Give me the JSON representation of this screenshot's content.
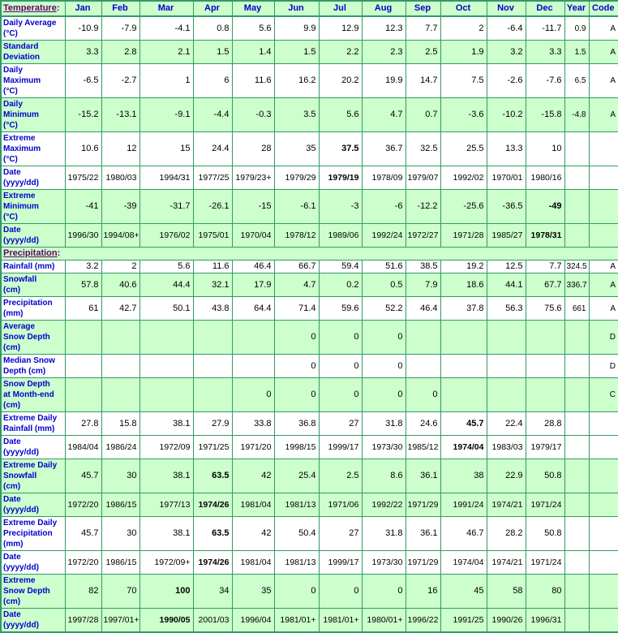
{
  "colors": {
    "row_green": "#CCFFCC",
    "row_white": "#FFFFFF",
    "border_green": "#339966",
    "label_blue": "#0000CC",
    "section_purple": "#660066",
    "value_black": "#000000"
  },
  "header": {
    "section_label": "Temperature",
    "section_suffix": ":",
    "columns": [
      "Jan",
      "Feb",
      "Mar",
      "Apr",
      "May",
      "Jun",
      "Jul",
      "Aug",
      "Sep",
      "Oct",
      "Nov",
      "Dec",
      "Year",
      "Code"
    ]
  },
  "rows": [
    {
      "type": "data",
      "id": "daily-average",
      "label": "Daily Average\n(°C)",
      "bg": "white",
      "date": false,
      "group_start": false,
      "bold": null,
      "values": [
        "-10.9",
        "-7.9",
        "-4.1",
        "0.8",
        "5.6",
        "9.9",
        "12.9",
        "12.3",
        "7.7",
        "2",
        "-6.4",
        "-11.7"
      ],
      "year": "0.9",
      "code": "A"
    },
    {
      "type": "data",
      "id": "standard-deviation",
      "label": "Standard\nDeviation",
      "bg": "green",
      "date": false,
      "group_start": false,
      "bold": null,
      "values": [
        "3.3",
        "2.8",
        "2.1",
        "1.5",
        "1.4",
        "1.5",
        "2.2",
        "2.3",
        "2.5",
        "1.9",
        "3.2",
        "3.3"
      ],
      "year": "1.5",
      "code": "A"
    },
    {
      "type": "data",
      "id": "daily-maximum",
      "label": "Daily\nMaximum\n(°C)",
      "bg": "white",
      "date": false,
      "group_start": false,
      "bold": null,
      "values": [
        "-6.5",
        "-2.7",
        "1",
        "6",
        "11.6",
        "16.2",
        "20.2",
        "19.9",
        "14.7",
        "7.5",
        "-2.6",
        "-7.6"
      ],
      "year": "6.5",
      "code": "A"
    },
    {
      "type": "data",
      "id": "daily-minimum",
      "label": "Daily\nMinimum\n(°C)",
      "bg": "green",
      "date": false,
      "group_start": false,
      "bold": null,
      "values": [
        "-15.2",
        "-13.1",
        "-9.1",
        "-4.4",
        "-0.3",
        "3.5",
        "5.6",
        "4.7",
        "0.7",
        "-3.6",
        "-10.2",
        "-15.8"
      ],
      "year": "-4.8",
      "code": "A"
    },
    {
      "type": "data",
      "id": "extreme-maximum",
      "label": "Extreme\nMaximum\n(°C)",
      "bg": "white",
      "date": false,
      "group_start": true,
      "bold": 6,
      "values": [
        "10.6",
        "12",
        "15",
        "24.4",
        "28",
        "35",
        "37.5",
        "36.7",
        "32.5",
        "25.5",
        "13.3",
        "10"
      ],
      "year": "",
      "code": ""
    },
    {
      "type": "data",
      "id": "date-extreme-maximum",
      "label": "Date\n(yyyy/dd)",
      "bg": "white",
      "date": true,
      "group_start": false,
      "bold": 6,
      "values": [
        "1975/22",
        "1980/03",
        "1994/31",
        "1977/25",
        "1979/23+",
        "1979/29",
        "1979/19",
        "1978/09",
        "1979/07",
        "1992/02",
        "1970/01",
        "1980/16"
      ],
      "year": "",
      "code": ""
    },
    {
      "type": "data",
      "id": "extreme-minimum",
      "label": "Extreme\nMinimum\n(°C)",
      "bg": "green",
      "date": false,
      "group_start": true,
      "bold": 11,
      "values": [
        "-41",
        "-39",
        "-31.7",
        "-26.1",
        "-15",
        "-6.1",
        "-3",
        "-6",
        "-12.2",
        "-25.6",
        "-36.5",
        "-49"
      ],
      "year": "",
      "code": ""
    },
    {
      "type": "data",
      "id": "date-extreme-minimum",
      "label": "Date\n(yyyy/dd)",
      "bg": "green",
      "date": true,
      "group_start": false,
      "bold": 11,
      "values": [
        "1996/30",
        "1994/08+",
        "1976/02",
        "1975/01",
        "1970/04",
        "1978/12",
        "1989/06",
        "1992/24",
        "1972/27",
        "1971/28",
        "1985/27",
        "1978/31"
      ],
      "year": "",
      "code": ""
    },
    {
      "type": "section",
      "id": "precipitation",
      "label": "Precipitation",
      "suffix": ":",
      "bg": "green"
    },
    {
      "type": "data",
      "id": "rainfall",
      "label": "Rainfall (mm)",
      "bg": "white",
      "date": false,
      "group_start": true,
      "bold": null,
      "values": [
        "3.2",
        "2",
        "5.6",
        "11.6",
        "46.4",
        "66.7",
        "59.4",
        "51.6",
        "38.5",
        "19.2",
        "12.5",
        "7.7"
      ],
      "year": "324.5",
      "code": "A"
    },
    {
      "type": "data",
      "id": "snowfall",
      "label": "Snowfall\n(cm)",
      "bg": "green",
      "date": false,
      "group_start": false,
      "bold": null,
      "values": [
        "57.8",
        "40.6",
        "44.4",
        "32.1",
        "17.9",
        "4.7",
        "0.2",
        "0.5",
        "7.9",
        "18.6",
        "44.1",
        "67.7"
      ],
      "year": "336.7",
      "code": "A"
    },
    {
      "type": "data",
      "id": "precipitation-mm",
      "label": "Precipitation\n(mm)",
      "bg": "white",
      "date": false,
      "group_start": false,
      "bold": null,
      "values": [
        "61",
        "42.7",
        "50.1",
        "43.8",
        "64.4",
        "71.4",
        "59.6",
        "52.2",
        "46.4",
        "37.8",
        "56.3",
        "75.6"
      ],
      "year": "661",
      "code": "A"
    },
    {
      "type": "data",
      "id": "average-snow-depth",
      "label": "Average\nSnow Depth\n(cm)",
      "bg": "green",
      "date": false,
      "group_start": false,
      "bold": null,
      "values": [
        "",
        "",
        "",
        "",
        "",
        "0",
        "0",
        "0",
        "",
        "",
        "",
        ""
      ],
      "year": "",
      "code": "D"
    },
    {
      "type": "data",
      "id": "median-snow-depth",
      "label": "Median Snow\nDepth (cm)",
      "bg": "white",
      "date": false,
      "group_start": false,
      "bold": null,
      "values": [
        "",
        "",
        "",
        "",
        "",
        "0",
        "0",
        "0",
        "",
        "",
        "",
        ""
      ],
      "year": "",
      "code": "D"
    },
    {
      "type": "data",
      "id": "snow-depth-month-end",
      "label": "Snow Depth\nat Month-end\n(cm)",
      "bg": "green",
      "date": false,
      "group_start": false,
      "bold": null,
      "values": [
        "",
        "",
        "",
        "",
        "0",
        "0",
        "0",
        "0",
        "0",
        "",
        "",
        ""
      ],
      "year": "",
      "code": "C"
    },
    {
      "type": "data",
      "id": "extreme-daily-rainfall",
      "label": "Extreme Daily\nRainfall (mm)",
      "bg": "white",
      "date": false,
      "group_start": true,
      "bold": 9,
      "values": [
        "27.8",
        "15.8",
        "38.1",
        "27.9",
        "33.8",
        "36.8",
        "27",
        "31.8",
        "24.6",
        "45.7",
        "22.4",
        "28.8"
      ],
      "year": "",
      "code": ""
    },
    {
      "type": "data",
      "id": "date-extreme-daily-rainfall",
      "label": "Date\n(yyyy/dd)",
      "bg": "white",
      "date": true,
      "group_start": false,
      "bold": 9,
      "values": [
        "1984/04",
        "1986/24",
        "1972/09",
        "1971/25",
        "1971/20",
        "1998/15",
        "1999/17",
        "1973/30",
        "1985/12",
        "1974/04",
        "1983/03",
        "1979/17"
      ],
      "year": "",
      "code": ""
    },
    {
      "type": "data",
      "id": "extreme-daily-snowfall",
      "label": "Extreme Daily\nSnowfall\n(cm)",
      "bg": "green",
      "date": false,
      "group_start": true,
      "bold": 3,
      "values": [
        "45.7",
        "30",
        "38.1",
        "63.5",
        "42",
        "25.4",
        "2.5",
        "8.6",
        "36.1",
        "38",
        "22.9",
        "50.8"
      ],
      "year": "",
      "code": ""
    },
    {
      "type": "data",
      "id": "date-extreme-daily-snowfall",
      "label": "Date\n(yyyy/dd)",
      "bg": "green",
      "date": true,
      "group_start": false,
      "bold": 3,
      "values": [
        "1972/20",
        "1986/15",
        "1977/13",
        "1974/26",
        "1981/04",
        "1981/13",
        "1971/06",
        "1992/22",
        "1971/29",
        "1991/24",
        "1974/21",
        "1971/24"
      ],
      "year": "",
      "code": ""
    },
    {
      "type": "data",
      "id": "extreme-daily-precipitation",
      "label": "Extreme Daily\nPrecipitation\n(mm)",
      "bg": "white",
      "date": false,
      "group_start": true,
      "bold": 3,
      "values": [
        "45.7",
        "30",
        "38.1",
        "63.5",
        "42",
        "50.4",
        "27",
        "31.8",
        "36.1",
        "46.7",
        "28.2",
        "50.8"
      ],
      "year": "",
      "code": ""
    },
    {
      "type": "data",
      "id": "date-extreme-daily-precipitation",
      "label": "Date\n(yyyy/dd)",
      "bg": "white",
      "date": true,
      "group_start": false,
      "bold": 3,
      "values": [
        "1972/20",
        "1986/15",
        "1972/09+",
        "1974/26",
        "1981/04",
        "1981/13",
        "1999/17",
        "1973/30",
        "1971/29",
        "1974/04",
        "1974/21",
        "1971/24"
      ],
      "year": "",
      "code": ""
    },
    {
      "type": "data",
      "id": "extreme-snow-depth",
      "label": "Extreme\nSnow Depth\n(cm)",
      "bg": "green",
      "date": false,
      "group_start": true,
      "bold": 2,
      "values": [
        "82",
        "70",
        "100",
        "34",
        "35",
        "0",
        "0",
        "0",
        "16",
        "45",
        "58",
        "80"
      ],
      "year": "",
      "code": ""
    },
    {
      "type": "data",
      "id": "date-extreme-snow-depth",
      "label": "Date\n(yyyy/dd)",
      "bg": "green",
      "date": true,
      "group_start": false,
      "bold": 2,
      "values": [
        "1997/28",
        "1997/01+",
        "1990/05",
        "2001/03",
        "1996/04",
        "1981/01+",
        "1981/01+",
        "1980/01+",
        "1996/22",
        "1991/25",
        "1990/26",
        "1996/31"
      ],
      "year": "",
      "code": ""
    }
  ]
}
